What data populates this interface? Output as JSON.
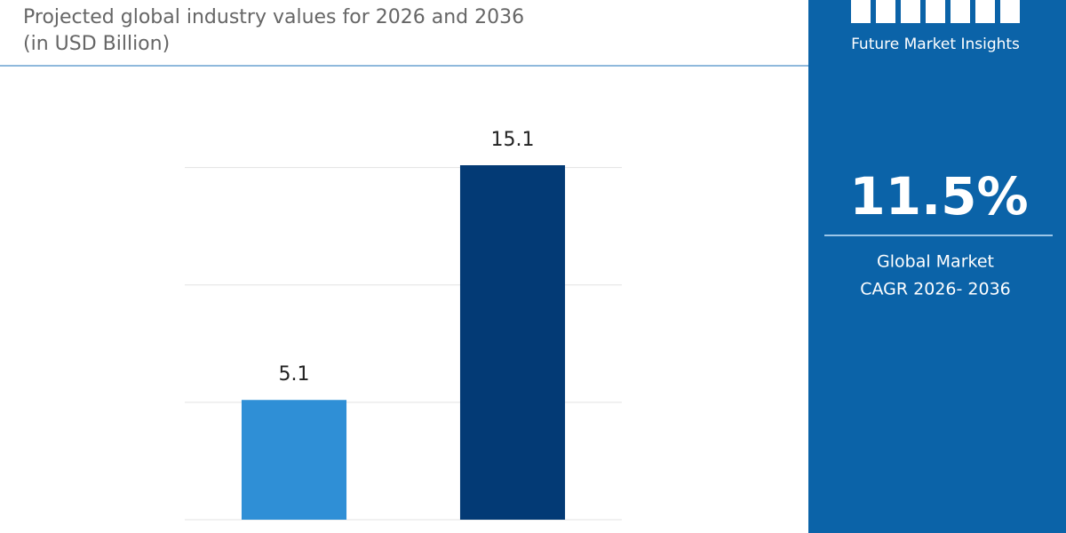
{
  "chart_data": {
    "type": "bar",
    "title": "Projected global industry values for 2026 and 2036",
    "subtitle": "(in USD Billion)",
    "categories": [
      null,
      null
    ],
    "values": [
      5.1,
      15.1
    ],
    "colors": [
      "#2f8fd6",
      "#033a75"
    ],
    "ylim": [
      0,
      15.1
    ],
    "yticks": [
      0,
      5,
      10,
      15
    ],
    "grid": true
  },
  "panel": {
    "brand": "Future Market Insights",
    "cagr": "11.5%",
    "caption_line1": "Global Market",
    "caption_line2": "CAGR 2026- 2036"
  }
}
